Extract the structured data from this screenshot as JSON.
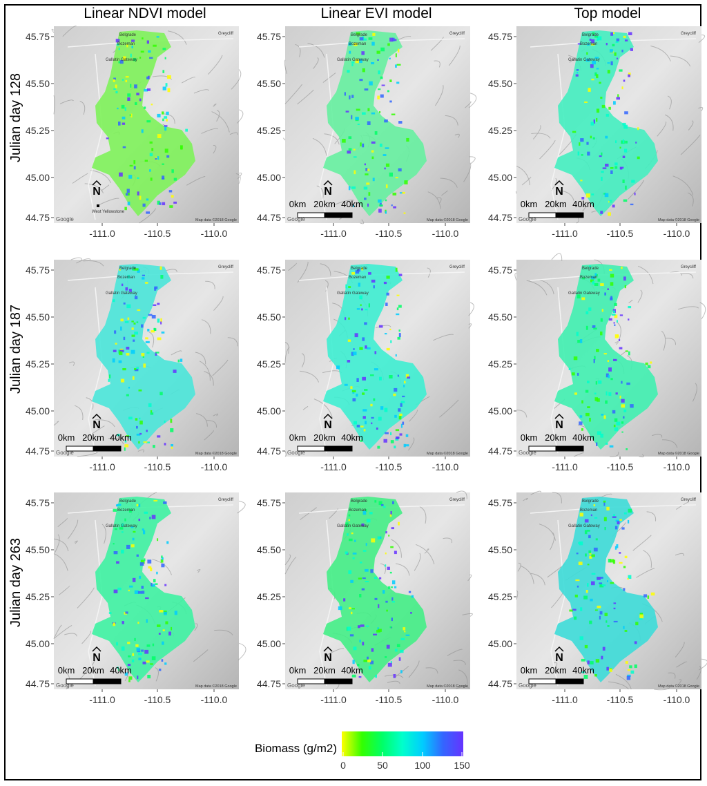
{
  "columns": [
    "Linear NDVI model",
    "Linear EVI model",
    "Top model"
  ],
  "rows": [
    "Julian day 128",
    "Julian day 187",
    "Julian day 263"
  ],
  "axes": {
    "y_ticks": [
      "45.75",
      "45.50",
      "45.25",
      "45.00",
      "44.75"
    ],
    "x_ticks": [
      "-111.0",
      "-110.5",
      "-110.0"
    ]
  },
  "map_labels": {
    "places": [
      "Belgrade",
      "Bozeman",
      "Gallatin Gateway",
      "Greycliff",
      "West Yellowstone"
    ],
    "google": "Google",
    "copyright": "Map data ©2018 Google"
  },
  "scalebar": {
    "labels": [
      "0km",
      "20km",
      "40km"
    ],
    "north": "N"
  },
  "legend": {
    "title": "Biomass (g/m2)",
    "ticks": [
      "0",
      "50",
      "100",
      "150"
    ],
    "colors": [
      "#ffff00",
      "#33ff00",
      "#00ff66",
      "#00ffcc",
      "#00ccff",
      "#3366ff",
      "#6633ff"
    ]
  },
  "panel_fill": [
    [
      "#7ef25a",
      "#66f0a0",
      "#44eec0"
    ],
    [
      "#4ae6d9",
      "#3eeed2",
      "#40f0b0"
    ],
    [
      "#3ef2a2",
      "#44ee86",
      "#3ddcd8"
    ]
  ]
}
